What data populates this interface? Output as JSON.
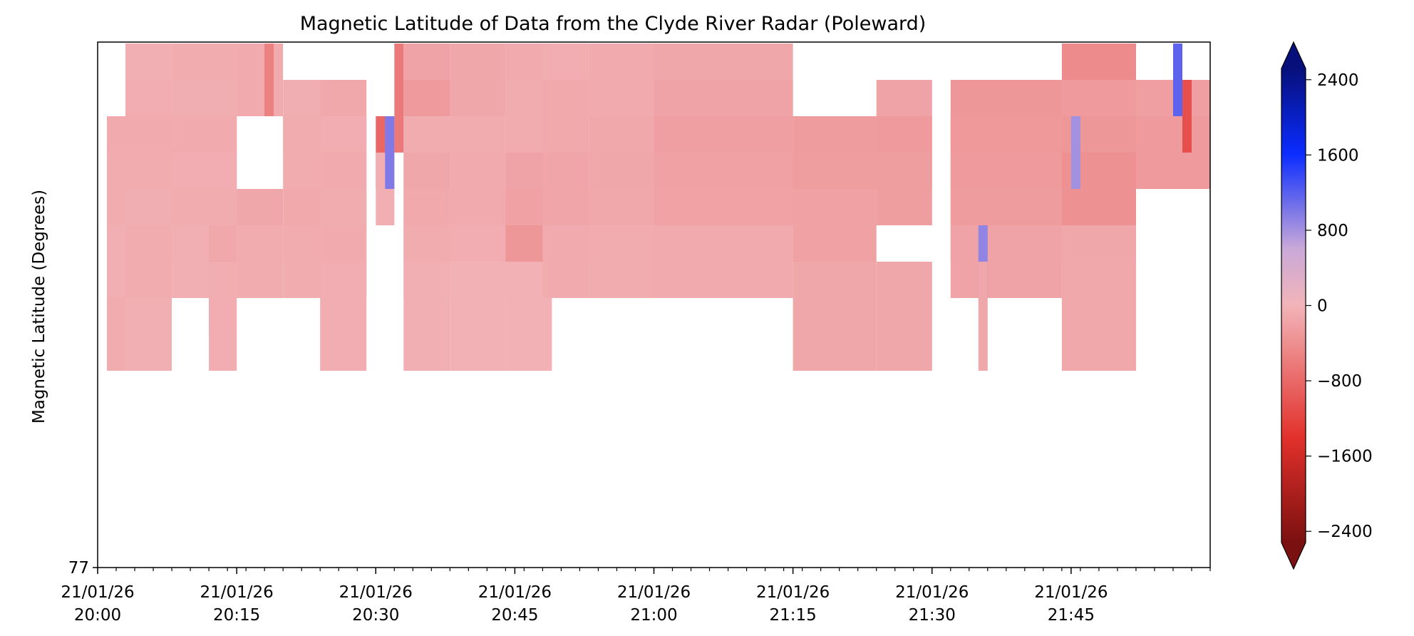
{
  "chart_data": {
    "type": "heatmap",
    "title": "Magnetic Latitude of Data from the Clyde River Radar (Poleward)",
    "xlabel": "",
    "ylabel": "Magnetic Latitude (Degrees)",
    "y_tick_labels": [
      "77"
    ],
    "x_ticks": [
      {
        "minute": 0,
        "date": "21/01/26",
        "time": "20:00"
      },
      {
        "minute": 15,
        "date": "21/01/26",
        "time": "20:15"
      },
      {
        "minute": 30,
        "date": "21/01/26",
        "time": "20:30"
      },
      {
        "minute": 45,
        "date": "21/01/26",
        "time": "20:45"
      },
      {
        "minute": 60,
        "date": "21/01/26",
        "time": "21:00"
      },
      {
        "minute": 75,
        "date": "21/01/26",
        "time": "21:15"
      },
      {
        "minute": 90,
        "date": "21/01/26",
        "time": "21:30"
      },
      {
        "minute": 105,
        "date": "21/01/26",
        "time": "21:45"
      }
    ],
    "x_range_minutes": [
      0,
      120
    ],
    "colorbar": {
      "min": -2800,
      "max": 2800,
      "ticks": [
        2400,
        1600,
        800,
        0,
        -800,
        -1600,
        -2400
      ],
      "tick_labels": [
        "2400",
        "1600",
        "800",
        "0",
        "−800",
        "−1600",
        "−2400"
      ],
      "colors": [
        "#7a1010",
        "#e2302a",
        "#f2b4b8",
        "#c9a9d8",
        "#0a2cff",
        "#07107a"
      ]
    },
    "columns": [
      {
        "start": 1,
        "end": 3,
        "rows": [
          [
            1,
            0,
            -80
          ],
          [
            2,
            2,
            -120
          ],
          [
            3,
            4,
            -100
          ],
          [
            5,
            6,
            -60
          ],
          [
            7,
            8,
            -90
          ]
        ]
      },
      {
        "start": 3,
        "end": 8,
        "rows": [
          [
            0,
            1,
            -60
          ],
          [
            1,
            2,
            -80
          ],
          [
            2,
            3,
            -110
          ],
          [
            3,
            4,
            -90
          ],
          [
            4,
            5,
            -70
          ],
          [
            5,
            6,
            -90
          ],
          [
            7,
            8,
            -60
          ]
        ]
      },
      {
        "start": 8,
        "end": 15,
        "rows": [
          [
            0,
            1,
            -100
          ],
          [
            1,
            2,
            -70
          ],
          [
            2,
            3,
            -120
          ],
          [
            3,
            4,
            -80
          ],
          [
            4,
            5,
            -100
          ],
          [
            5,
            6,
            -60
          ]
        ]
      },
      {
        "start": 10,
        "end": 11,
        "rows": [
          [
            1,
            0,
            400
          ]
        ]
      },
      {
        "start": 11,
        "end": 12,
        "rows": [
          [
            2,
            0,
            500
          ]
        ]
      },
      {
        "start": 12,
        "end": 15,
        "rows": [
          [
            5,
            7,
            -140
          ],
          [
            6,
            8,
            -80
          ]
        ]
      },
      {
        "start": 15,
        "end": 20,
        "rows": [
          [
            0,
            1,
            -120
          ],
          [
            4,
            5,
            -150
          ],
          [
            5,
            6,
            -100
          ]
        ]
      },
      {
        "start": 18,
        "end": 19,
        "rows": [
          [
            0,
            1,
            -600
          ]
        ]
      },
      {
        "start": 20,
        "end": 25,
        "rows": [
          [
            1,
            2,
            -70
          ],
          [
            2,
            3,
            -90
          ],
          [
            4,
            5,
            -130
          ],
          [
            5,
            6,
            -100
          ]
        ]
      },
      {
        "start": 24,
        "end": 29,
        "rows": [
          [
            1,
            2,
            -140
          ],
          [
            2,
            3,
            -80
          ],
          [
            3,
            4,
            -120
          ],
          [
            4,
            5,
            -90
          ],
          [
            5,
            6,
            -110
          ],
          [
            6,
            8,
            -80
          ]
        ]
      },
      {
        "start": 30,
        "end": 32,
        "rows": [
          [
            2,
            3,
            -900
          ],
          [
            3,
            4,
            -60
          ]
        ]
      },
      {
        "start": 31,
        "end": 32,
        "rows": [
          [
            2,
            3,
            1100
          ]
        ]
      },
      {
        "start": 32,
        "end": 33,
        "rows": [
          [
            0,
            2,
            -700
          ]
        ]
      },
      {
        "start": 33,
        "end": 38,
        "rows": [
          [
            0,
            1,
            -200
          ],
          [
            1,
            2,
            -300
          ],
          [
            2,
            3,
            -100
          ],
          [
            3,
            4,
            -150
          ],
          [
            4,
            5,
            -130
          ],
          [
            5,
            6,
            -90
          ],
          [
            6,
            8,
            -60
          ]
        ]
      },
      {
        "start": 38,
        "end": 44,
        "rows": [
          [
            0,
            1,
            -150
          ],
          [
            2,
            3,
            -90
          ],
          [
            3,
            4,
            -110
          ],
          [
            4,
            5,
            -120
          ],
          [
            5,
            6,
            -80
          ],
          [
            6,
            8,
            -40
          ]
        ]
      },
      {
        "start": 44,
        "end": 49,
        "rows": [
          [
            0,
            1,
            -110
          ],
          [
            1,
            2,
            -100
          ],
          [
            3,
            4,
            -200
          ],
          [
            4,
            5,
            -220
          ],
          [
            5,
            6,
            -350
          ],
          [
            6,
            8,
            -40
          ]
        ]
      },
      {
        "start": 48,
        "end": 53,
        "rows": [
          [
            0,
            1,
            -80
          ],
          [
            1,
            2,
            -130
          ],
          [
            3,
            4,
            -170
          ],
          [
            4,
            5,
            -180
          ],
          [
            5,
            6,
            -110
          ]
        ]
      },
      {
        "start": 53,
        "end": 60,
        "rows": [
          [
            0,
            1,
            -120
          ],
          [
            2,
            3,
            -140
          ],
          [
            3,
            4,
            -160
          ],
          [
            4,
            5,
            -140
          ],
          [
            5,
            6,
            -90
          ]
        ]
      },
      {
        "start": 60,
        "end": 75,
        "rows": [
          [
            0,
            1,
            -150
          ],
          [
            1,
            2,
            -200
          ],
          [
            2,
            3,
            -250
          ],
          [
            3,
            4,
            -230
          ],
          [
            4,
            5,
            -210
          ],
          [
            5,
            6,
            -120
          ]
        ]
      },
      {
        "start": 75,
        "end": 84,
        "rows": [
          [
            2,
            3,
            -280
          ],
          [
            3,
            4,
            -260
          ],
          [
            4,
            5,
            -230
          ],
          [
            6,
            8,
            -160
          ]
        ]
      },
      {
        "start": 84,
        "end": 90,
        "rows": [
          [
            1,
            2,
            -200
          ],
          [
            2,
            3,
            -300
          ],
          [
            3,
            4,
            -260
          ],
          [
            6,
            8,
            -150
          ]
        ]
      },
      {
        "start": 92,
        "end": 104,
        "rows": [
          [
            1,
            2,
            -350
          ],
          [
            2,
            3,
            -320
          ],
          [
            3,
            4,
            -300
          ],
          [
            4,
            5,
            -280
          ],
          [
            5,
            6,
            -200
          ]
        ]
      },
      {
        "start": 95,
        "end": 96,
        "rows": [
          [
            5,
            6,
            1000
          ],
          [
            6,
            8,
            -160
          ]
        ]
      },
      {
        "start": 104,
        "end": 112,
        "rows": [
          [
            0,
            1,
            -500
          ],
          [
            1,
            2,
            -300
          ],
          [
            2,
            3,
            -350
          ],
          [
            3,
            4,
            -420
          ],
          [
            5,
            6,
            -150
          ],
          [
            6,
            8,
            -140
          ]
        ]
      },
      {
        "start": 105,
        "end": 106,
        "rows": [
          [
            2,
            3,
            900
          ]
        ]
      },
      {
        "start": 112,
        "end": 120,
        "rows": [
          [
            1,
            2,
            -250
          ],
          [
            2,
            3,
            -300
          ]
        ]
      },
      {
        "start": 116,
        "end": 117,
        "rows": [
          [
            0,
            1,
            1300
          ]
        ]
      },
      {
        "start": 117,
        "end": 118,
        "rows": [
          [
            1,
            2,
            -1200
          ]
        ]
      }
    ]
  }
}
